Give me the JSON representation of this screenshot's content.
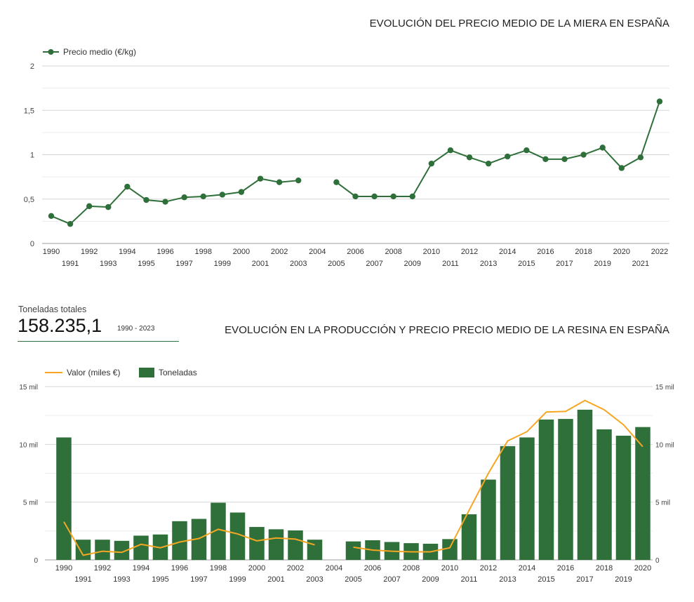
{
  "scorecard": {
    "label": "Toneladas totales",
    "value": "158.235,1",
    "range": "1990 - 2023"
  },
  "chart_data": [
    {
      "type": "line",
      "title": "EVOLUCIÓN DEL PRECIO MEDIO DE LA MIERA EN ESPAÑA",
      "legend_position": "top-left",
      "grid": true,
      "x": [
        1990,
        1991,
        1992,
        1993,
        1994,
        1995,
        1996,
        1997,
        1998,
        1999,
        2000,
        2001,
        2002,
        2003,
        2004,
        2005,
        2006,
        2007,
        2008,
        2009,
        2010,
        2011,
        2012,
        2013,
        2014,
        2015,
        2016,
        2017,
        2018,
        2019,
        2020,
        2021,
        2022
      ],
      "series": [
        {
          "name": "Precio medio (€/kg)",
          "color": "#2f6f3a",
          "values": [
            0.31,
            0.22,
            0.42,
            0.41,
            0.64,
            0.49,
            0.47,
            0.52,
            0.53,
            0.55,
            0.58,
            0.73,
            0.69,
            0.71,
            null,
            0.69,
            0.53,
            0.53,
            0.53,
            0.53,
            0.9,
            1.05,
            0.97,
            0.9,
            0.98,
            1.05,
            0.95,
            0.95,
            1.0,
            1.08,
            0.85,
            0.97,
            1.6
          ]
        }
      ],
      "ylim": [
        0,
        2
      ],
      "yticks": [
        "0",
        "0,5",
        "1",
        "1,5",
        "2"
      ]
    },
    {
      "type": "bar",
      "title": "EVOLUCIÓN EN LA PRODUCCIÓN Y PRECIO PRECIO MEDIO DE LA RESINA EN ESPAÑA",
      "legend_position": "top-left",
      "grid": true,
      "categories": [
        1990,
        1991,
        1992,
        1993,
        1994,
        1995,
        1996,
        1997,
        1998,
        1999,
        2000,
        2001,
        2002,
        2003,
        2004,
        2005,
        2006,
        2007,
        2008,
        2009,
        2010,
        2011,
        2012,
        2013,
        2014,
        2015,
        2016,
        2017,
        2018,
        2019,
        2020
      ],
      "series": [
        {
          "name": "Valor (miles €)",
          "kind": "line",
          "color": "#f5a623",
          "values": [
            3300,
            400,
            750,
            650,
            1350,
            1050,
            1550,
            1850,
            2650,
            2250,
            1650,
            1900,
            1800,
            1300,
            null,
            1100,
            850,
            750,
            700,
            700,
            1050,
            4300,
            7500,
            10300,
            11100,
            12800,
            12850,
            13800,
            13000,
            11700,
            9800
          ]
        },
        {
          "name": "Toneladas",
          "kind": "bar",
          "color": "#2f6f3a",
          "values": [
            10600,
            1750,
            1750,
            1650,
            2100,
            2200,
            3350,
            3550,
            4950,
            4100,
            2850,
            2650,
            2550,
            1750,
            null,
            1600,
            1700,
            1550,
            1450,
            1400,
            1800,
            3950,
            6950,
            9850,
            10600,
            12150,
            12200,
            13000,
            11300,
            10750,
            11500
          ]
        }
      ],
      "ylim": [
        0,
        15000
      ],
      "yticks": [
        "0",
        "5 mil",
        "10 mil",
        "15 mil"
      ]
    }
  ]
}
